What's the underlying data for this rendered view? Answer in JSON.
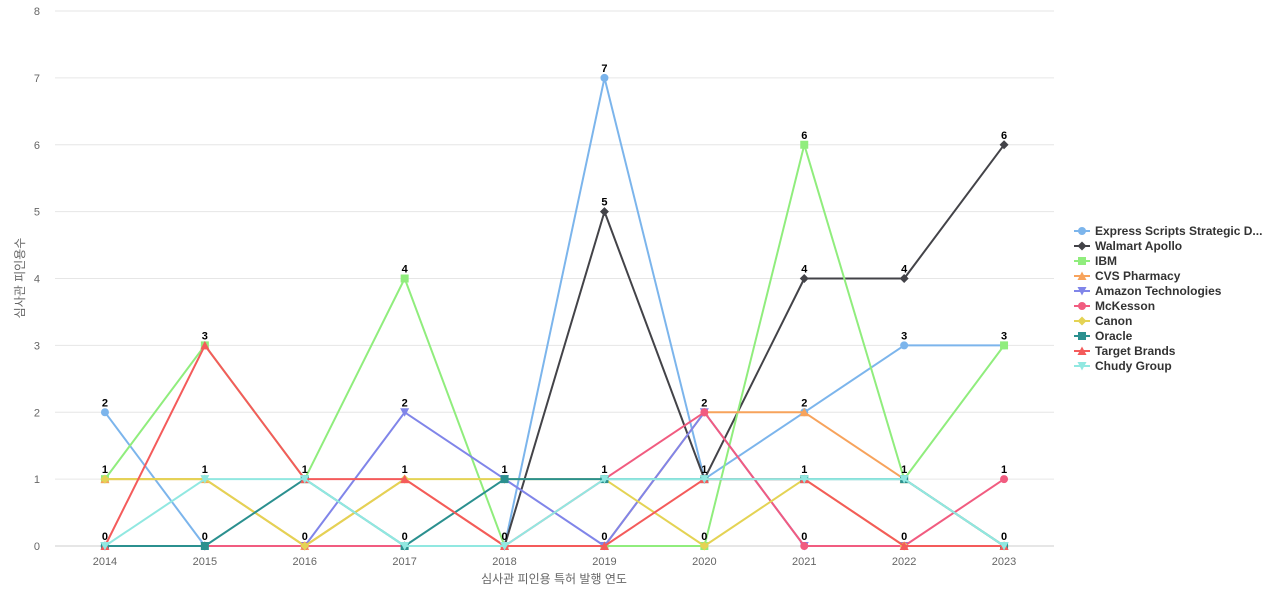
{
  "chart_data": {
    "type": "line",
    "title": "",
    "xlabel": "심사관 피인용 특허 발행 연도",
    "ylabel": "심사관 피인용수",
    "x": [
      "2014",
      "2015",
      "2016",
      "2017",
      "2018",
      "2019",
      "2020",
      "2021",
      "2022",
      "2023"
    ],
    "ylim": [
      0,
      8
    ],
    "yticks": [
      "0",
      "1",
      "2",
      "3",
      "4",
      "5",
      "6",
      "7",
      "8"
    ],
    "grid": true,
    "legend_position": "right",
    "series": [
      {
        "name": "Express Scripts Strategic D...",
        "color": "#7cb5ec",
        "marker": "circle",
        "values": [
          2,
          0,
          0,
          0,
          0,
          7,
          1,
          2,
          3,
          3
        ]
      },
      {
        "name": "Walmart Apollo",
        "color": "#434348",
        "marker": "diamond",
        "values": [
          0,
          0,
          0,
          0,
          0,
          5,
          1,
          4,
          4,
          6
        ]
      },
      {
        "name": "IBM",
        "color": "#90ed7d",
        "marker": "square",
        "values": [
          1,
          3,
          1,
          4,
          0,
          0,
          0,
          6,
          1,
          3
        ]
      },
      {
        "name": "CVS Pharmacy",
        "color": "#f7a35c",
        "marker": "triangle",
        "values": [
          1,
          1,
          0,
          1,
          0,
          0,
          2,
          2,
          1,
          0
        ]
      },
      {
        "name": "Amazon Technologies",
        "color": "#8085e9",
        "marker": "triangle-down",
        "values": [
          0,
          0,
          0,
          2,
          1,
          0,
          2,
          0,
          0,
          0
        ]
      },
      {
        "name": "McKesson",
        "color": "#f15c80",
        "marker": "circle",
        "values": [
          0,
          0,
          0,
          0,
          0,
          1,
          2,
          0,
          0,
          1
        ]
      },
      {
        "name": "Canon",
        "color": "#e4d354",
        "marker": "diamond",
        "values": [
          1,
          1,
          0,
          1,
          1,
          1,
          0,
          1,
          0,
          0
        ]
      },
      {
        "name": "Oracle",
        "color": "#2b908f",
        "marker": "square",
        "values": [
          0,
          0,
          1,
          0,
          1,
          1,
          1,
          1,
          1,
          0
        ]
      },
      {
        "name": "Target Brands",
        "color": "#f45b5b",
        "marker": "triangle",
        "values": [
          0,
          3,
          1,
          1,
          0,
          0,
          1,
          1,
          0,
          0
        ]
      },
      {
        "name": "Chudy Group",
        "color": "#91e8e1",
        "marker": "triangle-down",
        "values": [
          0,
          1,
          1,
          0,
          0,
          1,
          1,
          1,
          1,
          0
        ]
      }
    ],
    "data_labels": [
      {
        "x": "2014",
        "y": 2,
        "text": "2"
      },
      {
        "x": "2014",
        "y": 1,
        "text": "1"
      },
      {
        "x": "2014",
        "y": 0,
        "text": "0"
      },
      {
        "x": "2015",
        "y": 3,
        "text": "3"
      },
      {
        "x": "2015",
        "y": 1,
        "text": "1"
      },
      {
        "x": "2015",
        "y": 0,
        "text": "0"
      },
      {
        "x": "2016",
        "y": 1,
        "text": "1"
      },
      {
        "x": "2016",
        "y": 0,
        "text": "0"
      },
      {
        "x": "2017",
        "y": 4,
        "text": "4"
      },
      {
        "x": "2017",
        "y": 2,
        "text": "2"
      },
      {
        "x": "2017",
        "y": 1,
        "text": "1"
      },
      {
        "x": "2017",
        "y": 0,
        "text": "0"
      },
      {
        "x": "2018",
        "y": 1,
        "text": "1"
      },
      {
        "x": "2018",
        "y": 0,
        "text": "0"
      },
      {
        "x": "2019",
        "y": 7,
        "text": "7"
      },
      {
        "x": "2019",
        "y": 5,
        "text": "5"
      },
      {
        "x": "2019",
        "y": 1,
        "text": "1"
      },
      {
        "x": "2019",
        "y": 0,
        "text": "0"
      },
      {
        "x": "2020",
        "y": 2,
        "text": "2"
      },
      {
        "x": "2020",
        "y": 1,
        "text": "1"
      },
      {
        "x": "2020",
        "y": 0,
        "text": "0"
      },
      {
        "x": "2021",
        "y": 6,
        "text": "6"
      },
      {
        "x": "2021",
        "y": 4,
        "text": "4"
      },
      {
        "x": "2021",
        "y": 2,
        "text": "2"
      },
      {
        "x": "2021",
        "y": 1,
        "text": "1"
      },
      {
        "x": "2021",
        "y": 0,
        "text": "0"
      },
      {
        "x": "2022",
        "y": 4,
        "text": "4"
      },
      {
        "x": "2022",
        "y": 3,
        "text": "3"
      },
      {
        "x": "2022",
        "y": 1,
        "text": "1"
      },
      {
        "x": "2022",
        "y": 0,
        "text": "0"
      },
      {
        "x": "2023",
        "y": 6,
        "text": "6"
      },
      {
        "x": "2023",
        "y": 3,
        "text": "3"
      },
      {
        "x": "2023",
        "y": 1,
        "text": "1"
      },
      {
        "x": "2023",
        "y": 0,
        "text": "0"
      }
    ]
  }
}
